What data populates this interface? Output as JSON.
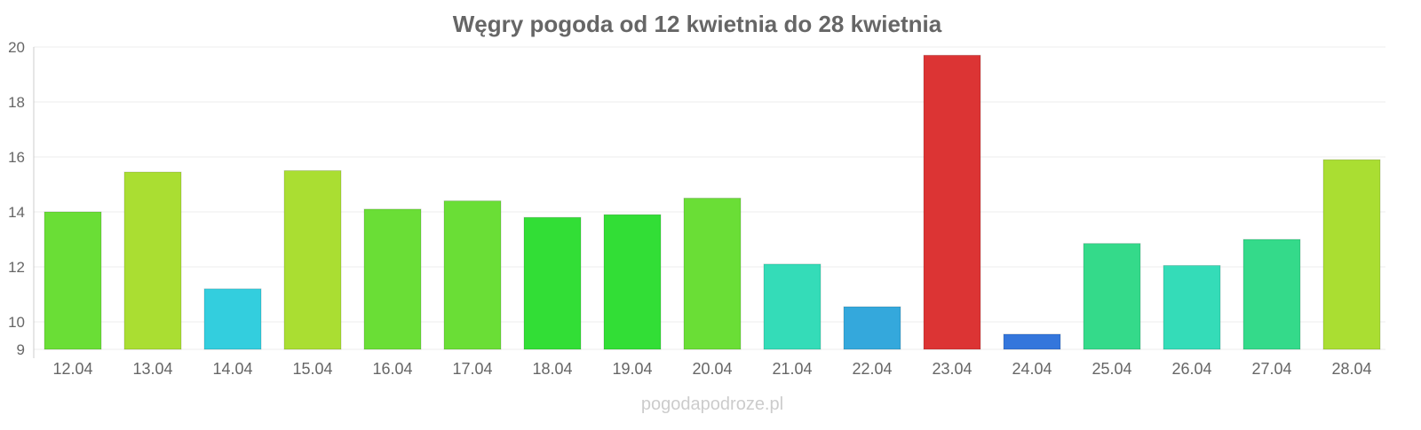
{
  "chart_data": {
    "type": "bar",
    "title": "Węgry pogoda od 12 kwietnia do 28 kwietnia",
    "xlabel": "",
    "ylabel": "",
    "ylim": [
      9,
      20
    ],
    "yticks": [
      9,
      10,
      12,
      14,
      16,
      18,
      20
    ],
    "grid": true,
    "categories": [
      "12.04",
      "13.04",
      "14.04",
      "15.04",
      "16.04",
      "17.04",
      "18.04",
      "19.04",
      "20.04",
      "21.04",
      "22.04",
      "23.04",
      "24.04",
      "25.04",
      "26.04",
      "27.04",
      "28.04"
    ],
    "values": [
      14.0,
      15.45,
      11.2,
      15.5,
      14.1,
      14.4,
      13.8,
      13.9,
      14.5,
      12.1,
      10.55,
      19.7,
      9.55,
      12.85,
      12.05,
      13.0,
      15.9
    ],
    "colors": [
      "#6ade36",
      "#aade32",
      "#33cede",
      "#aade32",
      "#6ade36",
      "#6ade36",
      "#32de36",
      "#32de36",
      "#6ade36",
      "#34dcb8",
      "#34a8dc",
      "#dc3434",
      "#3476dc",
      "#34da8a",
      "#34dcb8",
      "#34da8a",
      "#aade32"
    ]
  },
  "watermark": "pogodapodroze.pl"
}
